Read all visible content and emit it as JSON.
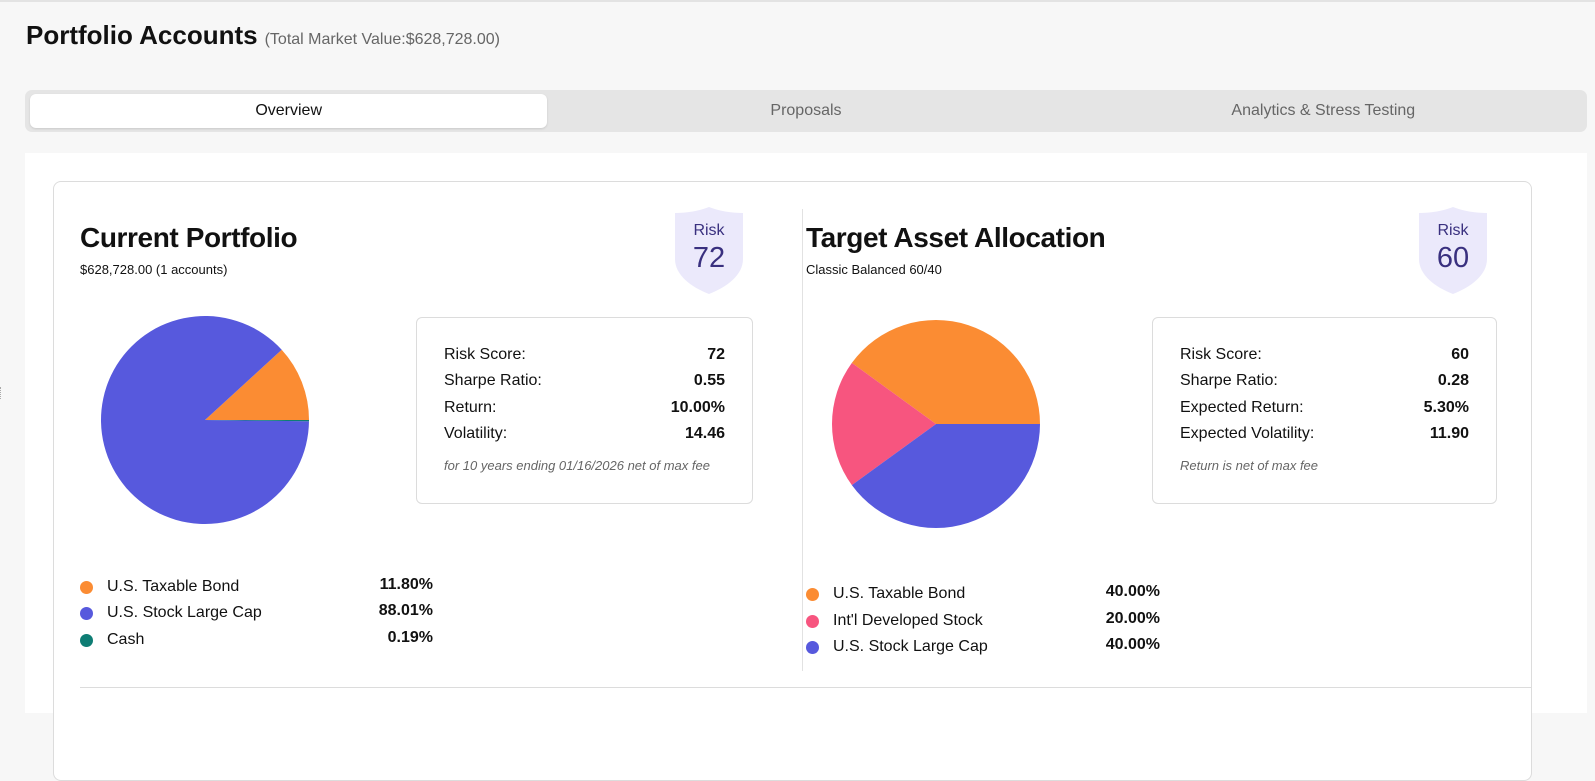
{
  "header": {
    "title": "Portfolio Accounts",
    "subtitle": "(Total Market Value:$628,728.00)"
  },
  "tabs": [
    {
      "label": "Overview",
      "active": true
    },
    {
      "label": "Proposals",
      "active": false
    },
    {
      "label": "Analytics & Stress Testing",
      "active": false
    }
  ],
  "current": {
    "title": "Current Portfolio",
    "subtitle": "$628,728.00 (1 accounts)",
    "risk_label": "Risk",
    "risk_value": "72",
    "stats": [
      {
        "label": "Risk Score:",
        "value": "72"
      },
      {
        "label": "Sharpe Ratio:",
        "value": "0.55"
      },
      {
        "label": "Return:",
        "value": "10.00%"
      },
      {
        "label": "Volatility:",
        "value": "14.46"
      }
    ],
    "note": "for 10 years ending 01/16/2026 net of max fee",
    "legend": [
      {
        "label": "U.S. Taxable Bond",
        "pct": "11.80%",
        "value": 11.8,
        "color": "#fb8c33"
      },
      {
        "label": "U.S. Stock Large Cap",
        "pct": "88.01%",
        "value": 88.01,
        "color": "#5759dd"
      },
      {
        "label": "Cash",
        "pct": "0.19%",
        "value": 0.19,
        "color": "#0e7d74"
      }
    ]
  },
  "target": {
    "title": "Target Asset Allocation",
    "subtitle": "Classic Balanced 60/40",
    "risk_label": "Risk",
    "risk_value": "60",
    "stats": [
      {
        "label": "Risk Score:",
        "value": "60"
      },
      {
        "label": "Sharpe Ratio:",
        "value": "0.28"
      },
      {
        "label": "Expected Return:",
        "value": "5.30%"
      },
      {
        "label": "Expected Volatility:",
        "value": "11.90"
      }
    ],
    "note": "Return is net of max fee",
    "legend": [
      {
        "label": "U.S. Taxable Bond",
        "pct": "40.00%",
        "value": 40.0,
        "color": "#fb8c33"
      },
      {
        "label": "Int'l Developed Stock",
        "pct": "20.00%",
        "value": 20.0,
        "color": "#f7557f"
      },
      {
        "label": "U.S. Stock Large Cap",
        "pct": "40.00%",
        "value": 40.0,
        "color": "#5759dd"
      }
    ]
  },
  "chart_data": [
    {
      "type": "pie",
      "title": "Current Portfolio",
      "categories": [
        "U.S. Taxable Bond",
        "U.S. Stock Large Cap",
        "Cash"
      ],
      "values": [
        11.8,
        88.01,
        0.19
      ]
    },
    {
      "type": "pie",
      "title": "Target Asset Allocation",
      "categories": [
        "U.S. Taxable Bond",
        "Int'l Developed Stock",
        "U.S. Stock Large Cap"
      ],
      "values": [
        40.0,
        20.0,
        40.0
      ]
    }
  ]
}
